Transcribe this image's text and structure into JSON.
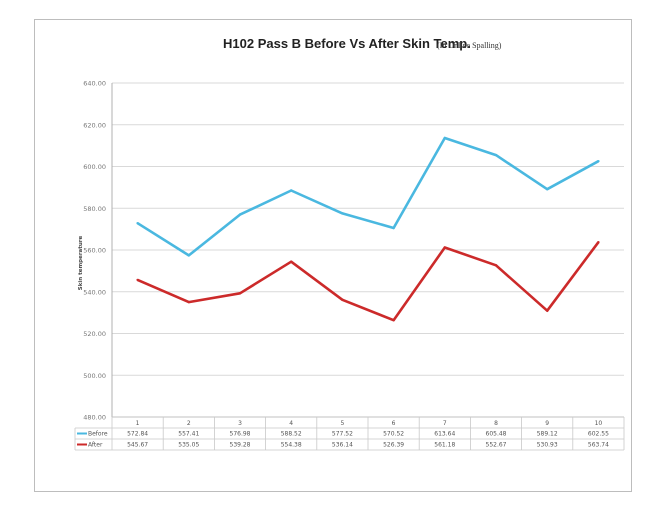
{
  "chart_data": {
    "type": "line",
    "title": "H102 Pass B Before Vs After Skin Temp.",
    "subtitle": "(In Online Spalling)",
    "ylabel": "Skin temperature",
    "xlabel": "",
    "ylim": [
      480,
      640
    ],
    "yticks": [
      "480.00",
      "500.00",
      "520.00",
      "540.00",
      "560.00",
      "580.00",
      "600.00",
      "620.00",
      "640.00"
    ],
    "categories": [
      "1",
      "2",
      "3",
      "4",
      "5",
      "6",
      "7",
      "8",
      "9",
      "10"
    ],
    "grid": true,
    "legend": "data-table",
    "series": [
      {
        "name": "Before",
        "color": "#4ab8e0",
        "values": [
          572.84,
          557.41,
          576.98,
          588.52,
          577.52,
          570.52,
          613.64,
          605.48,
          589.12,
          602.55
        ],
        "labels": [
          "572.84",
          "557.41",
          "576.98",
          "588.52",
          "577.52",
          "570.52",
          "613.64",
          "605.48",
          "589.12",
          "602.55"
        ]
      },
      {
        "name": "After",
        "color": "#cc2a2a",
        "values": [
          545.67,
          535.05,
          539.28,
          554.38,
          536.14,
          526.39,
          561.18,
          552.67,
          530.93,
          563.74
        ],
        "labels": [
          "545.67",
          "535.05",
          "539.28",
          "554.38",
          "536.14",
          "526.39",
          "561.18",
          "552.67",
          "530.93",
          "563.74"
        ]
      }
    ]
  }
}
